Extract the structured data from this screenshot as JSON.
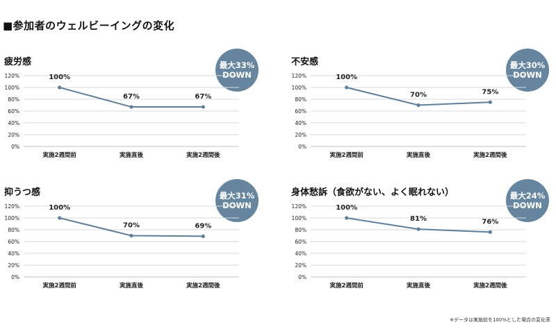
{
  "page_title": "■参加者のウェルビーイングの変化",
  "footnote": "※データは実施前を100%とした場合の変化率",
  "chart_data": [
    {
      "type": "line",
      "title": "疲労感",
      "badge": {
        "line1": "最大33%",
        "line2": "DOWN"
      },
      "categories": [
        "実施2週間前",
        "実施直後",
        "実施2週間後"
      ],
      "values": [
        100,
        67,
        67
      ],
      "data_labels": [
        "100%",
        "67%",
        "67%"
      ],
      "yticks": [
        "0%",
        "20%",
        "40%",
        "60%",
        "80%",
        "100%",
        "120%"
      ],
      "ylim": [
        0,
        120
      ],
      "grid": true,
      "color": "#5f7f99"
    },
    {
      "type": "line",
      "title": "不安感",
      "badge": {
        "line1": "最大30%",
        "line2": "DOWN"
      },
      "categories": [
        "実施2週間前",
        "実施直後",
        "実施2週間後"
      ],
      "values": [
        100,
        70,
        75
      ],
      "data_labels": [
        "100%",
        "70%",
        "75%"
      ],
      "yticks": [
        "0%",
        "20%",
        "40%",
        "60%",
        "80%",
        "100%",
        "120%"
      ],
      "ylim": [
        0,
        120
      ],
      "grid": true,
      "color": "#5f7f99"
    },
    {
      "type": "line",
      "title": "抑うつ感",
      "badge": {
        "line1": "最大31%",
        "line2": "DOWN"
      },
      "categories": [
        "実施2週間前",
        "実施直後",
        "実施2週間後"
      ],
      "values": [
        100,
        70,
        69
      ],
      "data_labels": [
        "100%",
        "70%",
        "69%"
      ],
      "yticks": [
        "0%",
        "20%",
        "40%",
        "60%",
        "80%",
        "100%",
        "120%"
      ],
      "ylim": [
        0,
        120
      ],
      "grid": true,
      "color": "#5f7f99"
    },
    {
      "type": "line",
      "title": "身体愁訴（食欲がない、よく眠れない）",
      "badge": {
        "line1": "最大24%",
        "line2": "DOWN"
      },
      "categories": [
        "実施2週間前",
        "実施直後",
        "実施2週間後"
      ],
      "values": [
        100,
        81,
        76
      ],
      "data_labels": [
        "100%",
        "81%",
        "76%"
      ],
      "yticks": [
        "0%",
        "20%",
        "40%",
        "60%",
        "80%",
        "100%",
        "120%"
      ],
      "ylim": [
        0,
        120
      ],
      "grid": true,
      "color": "#5f7f99"
    }
  ]
}
